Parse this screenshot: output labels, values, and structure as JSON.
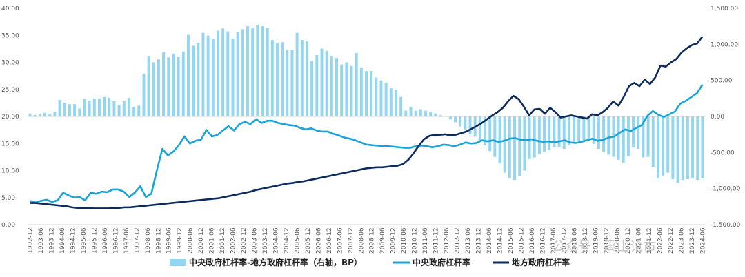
{
  "colors": {
    "bars": "#92d6f2",
    "central_line": "#1aa3d9",
    "local_line": "#0b2a5e",
    "axis": "#d0d0d0",
    "tick_text": "#595959"
  },
  "watermark": "公众号 · 禹山论市",
  "chart_data": {
    "type": "combo",
    "legend_position": "bottom",
    "grid": false,
    "x_tick_labels": [
      "1992-12",
      "1993-06",
      "1993-12",
      "1994-06",
      "1994-12",
      "1995-06",
      "1995-12",
      "1996-06",
      "1996-12",
      "1997-06",
      "1997-12",
      "1998-06",
      "1998-12",
      "1999-06",
      "1999-12",
      "2000-06",
      "2000-12",
      "2001-06",
      "2001-12",
      "2002-06",
      "2002-12",
      "2003-06",
      "2003-12",
      "2004-06",
      "2004-12",
      "2005-06",
      "2005-12",
      "2006-06",
      "2006-12",
      "2007-06",
      "2007-12",
      "2008-06",
      "2008-12",
      "2009-06",
      "2009-12",
      "2010-06",
      "2010-12",
      "2011-06",
      "2011-12",
      "2012-06",
      "2012-12",
      "2013-06",
      "2013-12",
      "2014-06",
      "2014-12",
      "2015-06",
      "2015-12",
      "2016-06",
      "2016-12",
      "2017-06",
      "2017-12",
      "2018-06",
      "2018-12",
      "2019-06",
      "2019-12",
      "2020-06",
      "2020-12",
      "2021-06",
      "2021-12",
      "2022-06",
      "2022-12",
      "2023-06",
      "2023-12",
      "2024-06"
    ],
    "left_axis": {
      "ylim": [
        0,
        40
      ],
      "ticks": [
        "0.00",
        "5.00",
        "10.00",
        "15.00",
        "20.00",
        "25.00",
        "30.00",
        "35.00",
        "40.00"
      ]
    },
    "right_axis": {
      "ylim": [
        -1500,
        1500
      ],
      "ticks": [
        "-1,500.00",
        "-1,000.00",
        "-500.00",
        "0.00",
        "500.00",
        "1,000.00",
        "1,500.00"
      ]
    },
    "series": [
      {
        "name": "中央政府杠杆率-地方政府杠杆率（右轴，BP）",
        "type": "bar",
        "axis": "right",
        "values": [
          40,
          20,
          35,
          50,
          30,
          65,
          230,
          190,
          170,
          170,
          110,
          240,
          220,
          250,
          250,
          270,
          260,
          210,
          160,
          210,
          260,
          130,
          150,
          590,
          840,
          750,
          790,
          890,
          820,
          870,
          830,
          900,
          1130,
          980,
          1020,
          1160,
          1120,
          1080,
          1190,
          1220,
          1180,
          1080,
          1170,
          1210,
          1250,
          1220,
          1270,
          1250,
          1230,
          1060,
          1020,
          1030,
          920,
          920,
          1160,
          1060,
          1040,
          770,
          850,
          940,
          910,
          840,
          810,
          720,
          750,
          700,
          880,
          680,
          630,
          630,
          540,
          500,
          470,
          390,
          370,
          270,
          80,
          130,
          80,
          100,
          80,
          60,
          40,
          20,
          0,
          -40,
          -80,
          -140,
          -180,
          -240,
          -280,
          -340,
          -400,
          -480,
          -560,
          -650,
          -780,
          -850,
          -880,
          -830,
          -750,
          -590,
          -570,
          -520,
          -490,
          -460,
          -420,
          -420,
          -450,
          -400,
          -350,
          -340,
          -330,
          -340,
          -380,
          -450,
          -490,
          -530,
          -560,
          -600,
          -640,
          -550,
          -430,
          -450,
          -570,
          -560,
          -700,
          -860,
          -820,
          -780,
          -870,
          -920,
          -880,
          -870,
          -860,
          -880,
          -860
        ]
      },
      {
        "name": "中央政府杠杆率",
        "type": "line",
        "axis": "left",
        "values": [
          4.4,
          4.1,
          4.4,
          4.6,
          4.2,
          4.5,
          5.9,
          5.4,
          5.0,
          5.1,
          4.5,
          5.9,
          5.7,
          6.1,
          6.0,
          6.5,
          6.5,
          6.1,
          5.1,
          5.9,
          7.1,
          5.1,
          5.7,
          10.0,
          14.0,
          12.8,
          13.5,
          14.7,
          16.3,
          15.0,
          15.5,
          15.7,
          17.5,
          16.3,
          16.6,
          17.4,
          18.2,
          17.4,
          18.6,
          19.0,
          18.6,
          19.5,
          18.8,
          19.2,
          19.2,
          18.8,
          18.6,
          18.4,
          18.3,
          17.9,
          17.6,
          17.8,
          17.4,
          17.2,
          17.2,
          16.8,
          16.5,
          16.1,
          15.9,
          15.6,
          15.2,
          14.8,
          14.7,
          14.6,
          14.5,
          14.5,
          14.4,
          14.3,
          14.2,
          14.2,
          14.5,
          14.6,
          14.5,
          14.3,
          14.5,
          14.8,
          14.7,
          14.5,
          14.8,
          15.2,
          15.0,
          15.1,
          15.6,
          15.4,
          15.6,
          15.3,
          15.5,
          15.9,
          16.0,
          15.7,
          15.6,
          15.8,
          15.5,
          15.3,
          15.4,
          15.2,
          15.4,
          15.6,
          15.2,
          15.1,
          15.3,
          15.6,
          15.9,
          15.5,
          15.7,
          16.1,
          16.3,
          17.0,
          17.6,
          17.3,
          17.9,
          18.4,
          20.1,
          21.0,
          20.3,
          19.9,
          20.4,
          20.9,
          22.4,
          22.9,
          23.6,
          24.3,
          25.9
        ],
        "x_note": "monthly-ish samples; rendered against bar slots"
      },
      {
        "name": "地方政府杠杆率",
        "type": "line",
        "axis": "left",
        "values": [
          4.0,
          4.0,
          3.9,
          3.8,
          3.7,
          3.6,
          3.5,
          3.4,
          3.2,
          3.1,
          3.1,
          3.1,
          3.0,
          3.0,
          3.0,
          3.0,
          3.1,
          3.1,
          3.2,
          3.2,
          3.3,
          3.4,
          3.5,
          3.6,
          3.7,
          3.8,
          3.9,
          4.0,
          4.1,
          4.2,
          4.3,
          4.4,
          4.5,
          4.6,
          4.7,
          4.8,
          4.9,
          5.1,
          5.3,
          5.5,
          5.7,
          5.9,
          6.1,
          6.4,
          6.6,
          6.8,
          7.0,
          7.2,
          7.4,
          7.6,
          7.7,
          7.9,
          8.0,
          8.2,
          8.4,
          8.6,
          8.8,
          9.0,
          9.2,
          9.4,
          9.6,
          9.8,
          10.0,
          10.2,
          10.4,
          10.5,
          10.6,
          10.6,
          10.7,
          10.8,
          10.9,
          11.2,
          12.0,
          13.2,
          14.6,
          15.8,
          16.4,
          16.6,
          16.6,
          16.7,
          16.5,
          16.6,
          16.9,
          17.2,
          17.7,
          18.2,
          18.8,
          19.5,
          20.2,
          20.8,
          21.6,
          22.8,
          23.8,
          23.2,
          21.8,
          20.2,
          21.3,
          21.4,
          20.5,
          21.6,
          20.8,
          19.8,
          20.0,
          20.2,
          20.0,
          19.8,
          19.6,
          20.4,
          20.2,
          20.8,
          21.6,
          22.8,
          22.0,
          23.6,
          25.6,
          26.2,
          25.6,
          26.8,
          26.0,
          27.2,
          29.4,
          29.2,
          30.0,
          30.6,
          31.8,
          32.6,
          33.2,
          33.5,
          34.8
        ]
      }
    ],
    "legend": [
      "中央政府杠杆率-地方政府杠杆率（右轴，BP）",
      "中央政府杠杆率",
      "地方政府杠杆率"
    ]
  }
}
